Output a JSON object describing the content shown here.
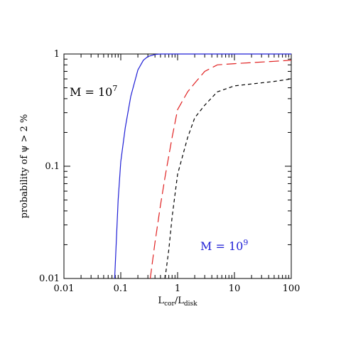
{
  "chart_data": {
    "type": "line",
    "xscale": "log",
    "yscale": "log",
    "xlim": [
      0.01,
      100
    ],
    "ylim": [
      0.01,
      1
    ],
    "grid": false,
    "xlabel": {
      "main": "L",
      "sub1": "cor",
      "slash": "/L",
      "sub2": "disk"
    },
    "ylabel": "probability of ψ > 2 %",
    "x_ticks": [
      {
        "value": 0.01,
        "label": "0.01"
      },
      {
        "value": 0.1,
        "label": "0.1"
      },
      {
        "value": 1,
        "label": "1"
      },
      {
        "value": 10,
        "label": "10"
      },
      {
        "value": 100,
        "label": "100"
      }
    ],
    "y_ticks": [
      {
        "value": 0.01,
        "label": "0.01"
      },
      {
        "value": 0.1,
        "label": "0.1"
      },
      {
        "value": 1,
        "label": "1"
      }
    ],
    "series": [
      {
        "color": "#1f1fd6",
        "dash": "solid",
        "x": [
          0.078,
          0.09,
          0.1,
          0.12,
          0.15,
          0.2,
          0.25,
          0.3,
          0.4,
          0.5,
          0.7,
          1,
          2,
          5,
          10,
          100
        ],
        "y": [
          0.01,
          0.05,
          0.11,
          0.22,
          0.42,
          0.72,
          0.88,
          0.95,
          0.99,
          1.0,
          1.0,
          1.0,
          1.0,
          1.0,
          1.0,
          1.0
        ]
      },
      {
        "color": "#e02020",
        "dash": "long",
        "x": [
          0.33,
          0.4,
          0.5,
          0.6,
          0.8,
          1,
          1.5,
          2,
          3,
          5,
          10,
          50,
          100
        ],
        "y": [
          0.01,
          0.021,
          0.045,
          0.08,
          0.18,
          0.32,
          0.46,
          0.55,
          0.7,
          0.8,
          0.82,
          0.86,
          0.88
        ]
      },
      {
        "color": "#000000",
        "dash": "short",
        "x": [
          0.6,
          0.7,
          0.8,
          1,
          1.5,
          2,
          3,
          5,
          10,
          50,
          100
        ],
        "y": [
          0.01,
          0.018,
          0.035,
          0.085,
          0.18,
          0.27,
          0.35,
          0.46,
          0.52,
          0.57,
          0.6
        ]
      }
    ],
    "annotations": [
      {
        "key": "m7",
        "prefix": "M  =  10",
        "exponent": "7",
        "color": "#000000"
      },
      {
        "key": "m9",
        "prefix": "M  =  10",
        "exponent": "9",
        "color": "#1f1fd6"
      }
    ]
  }
}
